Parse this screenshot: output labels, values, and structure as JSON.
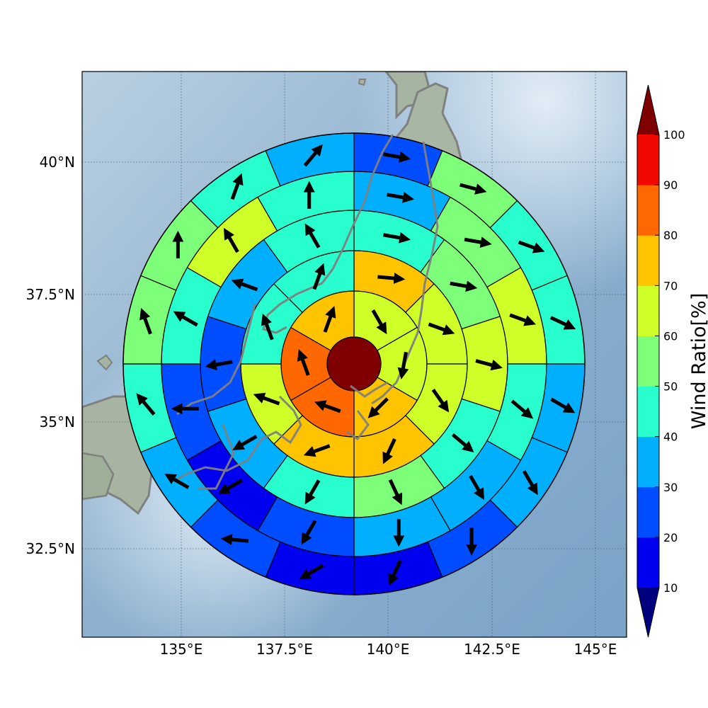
{
  "map": {
    "lat_labels": [
      "40°N",
      "37.5°N",
      "35°N",
      "32.5°N"
    ],
    "lon_labels": [
      "135°E",
      "137.5°E",
      "140°E",
      "142.5°E",
      "145°E"
    ],
    "colorbar": {
      "label": "Wind Ratio[%]",
      "ticks": [
        "10",
        "20",
        "30",
        "40",
        "50",
        "60",
        "70",
        "80",
        "90",
        "100"
      ],
      "levels": [
        {
          "from": 0,
          "to": 10,
          "color": "#00007f",
          "extend": "min"
        },
        {
          "from": 10,
          "to": 20,
          "color": "#0000f0"
        },
        {
          "from": 20,
          "to": 30,
          "color": "#004cff"
        },
        {
          "from": 30,
          "to": 40,
          "color": "#00b0ff"
        },
        {
          "from": 40,
          "to": 50,
          "color": "#29ffce"
        },
        {
          "from": 50,
          "to": 60,
          "color": "#7dff7a"
        },
        {
          "from": 60,
          "to": 70,
          "color": "#ceff29"
        },
        {
          "from": 70,
          "to": 80,
          "color": "#ffc400"
        },
        {
          "from": 80,
          "to": 90,
          "color": "#ff6800"
        },
        {
          "from": 90,
          "to": 100,
          "color": "#f10800"
        },
        {
          "from": 100,
          "to": 110,
          "color": "#7f0000",
          "extend": "max"
        }
      ]
    },
    "center": {
      "value": 100,
      "color": "#7f0000"
    },
    "rings": [
      {
        "sectors": 6,
        "values": [
          65,
          65,
          75,
          85,
          85,
          75
        ],
        "angles_deg": [
          60,
          100,
          135,
          200,
          250,
          290
        ]
      },
      {
        "sectors": 8,
        "values": [
          75,
          65,
          65,
          75,
          75,
          65,
          45,
          45
        ],
        "angles_deg": [
          5,
          20,
          55,
          115,
          160,
          200,
          250,
          290
        ]
      },
      {
        "sectors": 10,
        "values": [
          45,
          55,
          65,
          45,
          55,
          45,
          35,
          25,
          35,
          45
        ],
        "angles_deg": [
          10,
          10,
          15,
          40,
          65,
          120,
          150,
          170,
          200,
          240
        ]
      },
      {
        "sectors": 12,
        "values": [
          35,
          55,
          65,
          45,
          35,
          35,
          25,
          15,
          25,
          45,
          65,
          45
        ],
        "angles_deg": [
          10,
          10,
          20,
          40,
          60,
          90,
          120,
          150,
          180,
          210,
          240,
          270
        ]
      },
      {
        "sectors": 16,
        "values": [
          25,
          55,
          45,
          45,
          35,
          35,
          25,
          15,
          15,
          25,
          35,
          45,
          55,
          55,
          45,
          35
        ],
        "angles_deg": [
          10,
          15,
          20,
          25,
          30,
          60,
          90,
          115,
          150,
          185,
          210,
          230,
          250,
          270,
          290,
          310
        ]
      }
    ]
  }
}
